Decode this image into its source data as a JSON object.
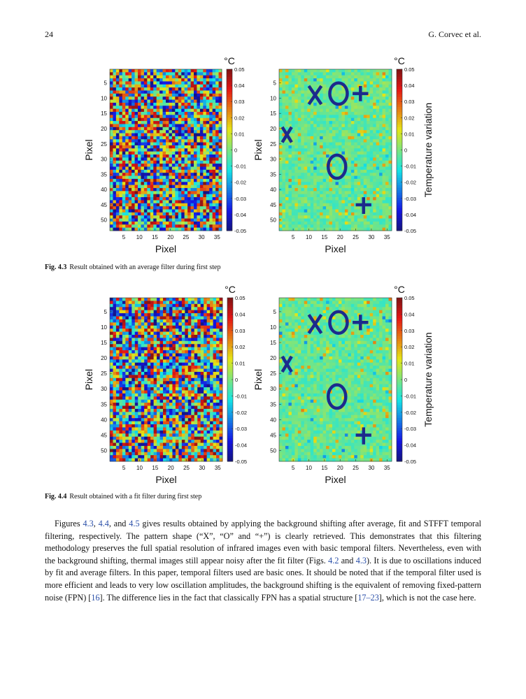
{
  "header": {
    "page": "24",
    "running_head": "G. Corvec et al."
  },
  "figures": [
    {
      "label": "Fig. 4.3",
      "caption": "Result obtained with an average filter during first step",
      "panels": [
        {
          "xlabel": "Pixel",
          "ylabel": "Pixel",
          "xlim": [
            0.5,
            36.5
          ],
          "ylim": [
            0.5,
            53.5
          ],
          "xticks": [
            5,
            10,
            15,
            20,
            25,
            30,
            35
          ],
          "yticks": [
            5,
            10,
            15,
            20,
            25,
            30,
            35,
            40,
            45,
            50
          ],
          "unit": "°C",
          "clim": [
            -0.05,
            0.05
          ],
          "cticks": [
            0.05,
            0.04,
            0.03,
            0.02,
            0.01,
            0,
            -0.01,
            -0.02,
            -0.03,
            -0.04,
            -0.05
          ]
        },
        {
          "xlabel": "Pixel",
          "ylabel": "Pixel",
          "xlim": [
            0.5,
            36.5
          ],
          "ylim": [
            0.5,
            53.5
          ],
          "xticks": [
            5,
            10,
            15,
            20,
            25,
            30,
            35
          ],
          "yticks": [
            5,
            10,
            15,
            20,
            25,
            30,
            35,
            40,
            45,
            50
          ],
          "unit": "°C",
          "clim": [
            -0.05,
            0.05
          ],
          "cticks": [
            0.05,
            0.04,
            0.03,
            0.02,
            0.01,
            0,
            -0.01,
            -0.02,
            -0.03,
            -0.04,
            -0.05
          ],
          "colorbar_label": "Temperature variation"
        }
      ]
    },
    {
      "label": "Fig. 4.4",
      "caption": "Result obtained with a fit filter during first step",
      "panels": [
        {
          "xlabel": "Pixel",
          "ylabel": "Pixel",
          "xlim": [
            0.5,
            36.5
          ],
          "ylim": [
            0.5,
            53.5
          ],
          "xticks": [
            5,
            10,
            15,
            20,
            25,
            30,
            35
          ],
          "yticks": [
            5,
            10,
            15,
            20,
            25,
            30,
            35,
            40,
            45,
            50
          ],
          "unit": "°C",
          "clim": [
            -0.05,
            0.05
          ],
          "cticks": [
            0.05,
            0.04,
            0.03,
            0.02,
            0.01,
            0,
            -0.01,
            -0.02,
            -0.03,
            -0.04,
            -0.05
          ]
        },
        {
          "xlabel": "Pixel",
          "ylabel": "Pixel",
          "xlim": [
            0.5,
            36.5
          ],
          "ylim": [
            0.5,
            53.5
          ],
          "xticks": [
            5,
            10,
            15,
            20,
            25,
            30,
            35
          ],
          "yticks": [
            5,
            10,
            15,
            20,
            25,
            30,
            35,
            40,
            45,
            50
          ],
          "unit": "°C",
          "clim": [
            -0.05,
            0.05
          ],
          "cticks": [
            0.05,
            0.04,
            0.03,
            0.02,
            0.01,
            0,
            -0.01,
            -0.02,
            -0.03,
            -0.04,
            -0.05
          ],
          "colorbar_label": "Temperature variation"
        }
      ]
    }
  ],
  "paragraph": [
    {
      "text": "Figures "
    },
    {
      "text": "4.3",
      "link": true
    },
    {
      "text": ", "
    },
    {
      "text": "4.4",
      "link": true
    },
    {
      "text": ", and "
    },
    {
      "text": "4.5",
      "link": true
    },
    {
      "text": " gives results obtained by applying the background shifting after average, fit and STFFT temporal filtering, respectively. The pattern shape (“X”, “O” and “+”) is clearly retrieved. This demonstrates that this filtering methodology preserves the full spatial resolution of infrared images even with basic temporal filters. Nevertheless, even with the background shifting, thermal images still appear noisy after the fit filter (Figs. "
    },
    {
      "text": "4.2",
      "link": true
    },
    {
      "text": " and "
    },
    {
      "text": "4.3",
      "link": true
    },
    {
      "text": "). It is due to oscillations induced by fit and average filters. In this paper, temporal filters used are basic ones. It should be noted that if the temporal filter used is more efficient and leads to very low oscillation amplitudes, the background shifting is the equivalent of removing fixed-pattern noise (FPN) ["
    },
    {
      "text": "16",
      "link": true
    },
    {
      "text": "]. The difference lies in the fact that classically FPN has a spatial structure ["
    },
    {
      "text": "17–23",
      "link": true
    },
    {
      "text": "], which is not the case here."
    }
  ]
}
